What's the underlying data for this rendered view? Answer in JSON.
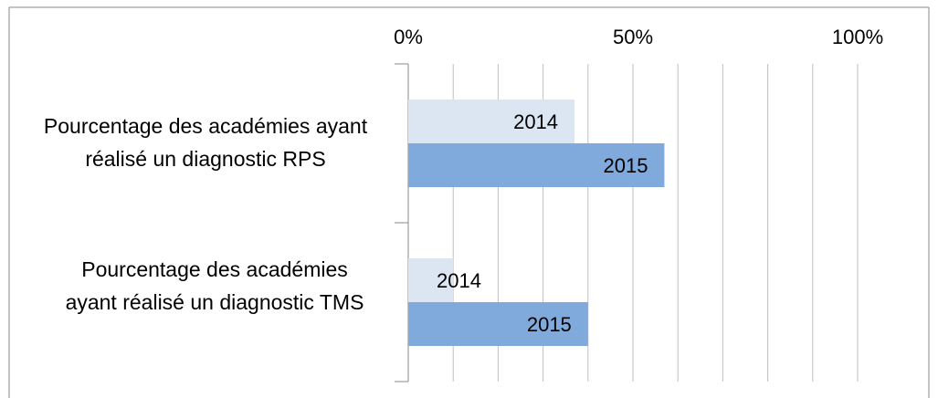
{
  "chart_data": {
    "type": "hbar",
    "categories": [
      "Pourcentage des académies ayant réalisé un diagnostic RPS",
      "Pourcentage des académies ayant réalisé un diagnostic TMS"
    ],
    "series": [
      {
        "name": "2014",
        "color": "#dce6f2",
        "values": [
          37,
          10
        ]
      },
      {
        "name": "2015",
        "color": "#7faadb",
        "values": [
          57,
          40
        ]
      }
    ],
    "xlim": [
      0,
      100
    ],
    "xticks": [
      {
        "value": 0,
        "label": "0%"
      },
      {
        "value": 50,
        "label": "50%"
      },
      {
        "value": 100,
        "label": "100%"
      }
    ],
    "grid_xticks": [
      10,
      20,
      30,
      40,
      60,
      70,
      80,
      90
    ],
    "grid": true
  }
}
